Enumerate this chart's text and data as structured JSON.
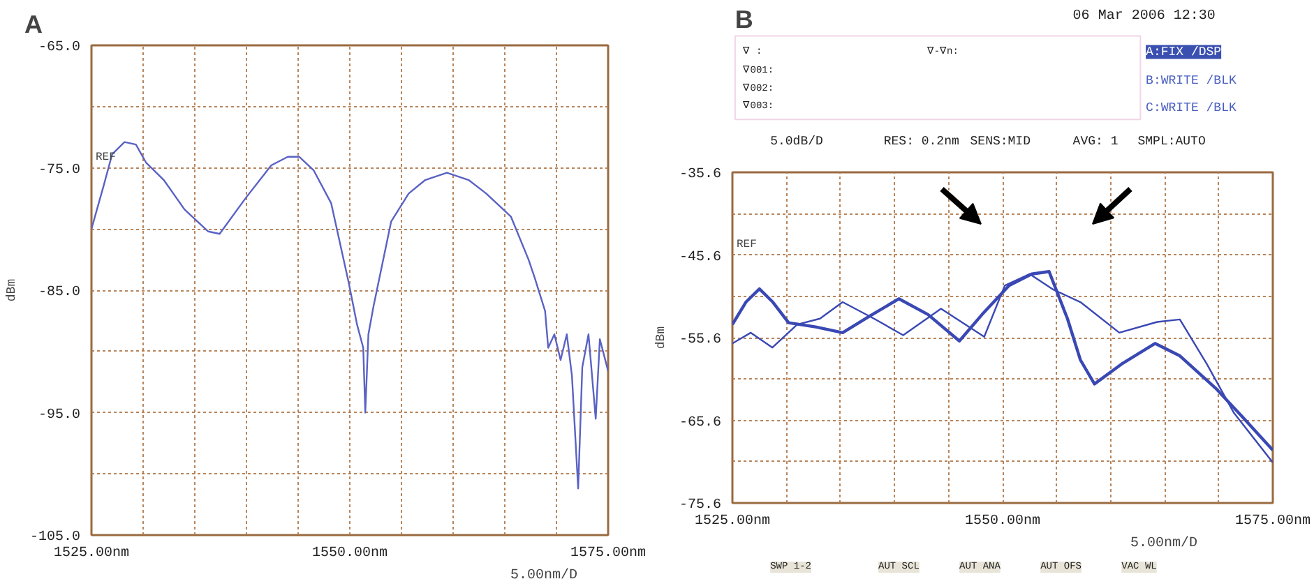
{
  "chart_data": [
    {
      "type": "line",
      "title": "A",
      "ylabel": "dBm",
      "xlim": [
        1525,
        1575
      ],
      "ylim": [
        -105,
        -65
      ],
      "xticks": [
        {
          "value": 1525,
          "label": "1525.00nm"
        },
        {
          "value": 1530,
          "label": null
        },
        {
          "value": 1535,
          "label": null
        },
        {
          "value": 1540,
          "label": null
        },
        {
          "value": 1545,
          "label": null
        },
        {
          "value": 1550,
          "label": "1550.00nm"
        },
        {
          "value": 1555,
          "label": null
        },
        {
          "value": 1560,
          "label": null
        },
        {
          "value": 1565,
          "label": null
        },
        {
          "value": 1570,
          "label": null
        },
        {
          "value": 1575,
          "label": "1575.00nm"
        }
      ],
      "yticks": [
        {
          "value": -105,
          "label": "-105.0"
        },
        {
          "value": -100,
          "label": null
        },
        {
          "value": -95,
          "label": "-95.0"
        },
        {
          "value": -90,
          "label": null
        },
        {
          "value": -85,
          "label": "-85.0"
        },
        {
          "value": -80,
          "label": null
        },
        {
          "value": -75,
          "label": "-75.0"
        },
        {
          "value": -70,
          "label": null
        },
        {
          "value": -65,
          "label": "-65.0"
        }
      ],
      "grid": true,
      "annotations": [
        "REF",
        "5.00nm/D"
      ],
      "series": [
        {
          "color": "#5a62c4",
          "x": [
            1525,
            1526.2,
            1527.0,
            1528.2,
            1529.3,
            1530.3,
            1532.0,
            1534.0,
            1536.3,
            1537.4,
            1539.9,
            1542.4,
            1544.0,
            1545.1,
            1546.5,
            1548.2,
            1549.9,
            1550.7,
            1551.3,
            1551.5,
            1551.8,
            1552.3,
            1554.0,
            1555.7,
            1557.3,
            1559.4,
            1561.5,
            1563.2,
            1565.6,
            1567.3,
            1567.9,
            1568.9,
            1569.2,
            1569.8,
            1570.4,
            1571.0,
            1571.5,
            1572.1,
            1572.5,
            1573.1,
            1573.8,
            1574.2,
            1575
          ],
          "values": [
            -80.0,
            -76.4,
            -73.9,
            -72.9,
            -73.1,
            -74.6,
            -76.0,
            -78.4,
            -80.2,
            -80.4,
            -77.5,
            -74.8,
            -74.1,
            -74.1,
            -75.2,
            -77.9,
            -84.4,
            -87.8,
            -89.7,
            -95.0,
            -88.6,
            -86.3,
            -79.4,
            -77.1,
            -76.0,
            -75.4,
            -76.0,
            -77.1,
            -79.0,
            -82.5,
            -84.0,
            -86.7,
            -89.7,
            -88.6,
            -90.7,
            -88.6,
            -92.0,
            -101.2,
            -91.3,
            -88.6,
            -95.5,
            -89.0,
            -91.6
          ]
        }
      ]
    },
    {
      "type": "line",
      "title": "B",
      "ylabel": "dBm",
      "xlim": [
        1525,
        1575
      ],
      "ylim": [
        -75.6,
        -35.6
      ],
      "xticks": [
        {
          "value": 1525,
          "label": "1525.00nm"
        },
        {
          "value": 1530,
          "label": null
        },
        {
          "value": 1535,
          "label": null
        },
        {
          "value": 1540,
          "label": null
        },
        {
          "value": 1545,
          "label": null
        },
        {
          "value": 1550,
          "label": "1550.00nm"
        },
        {
          "value": 1555,
          "label": null
        },
        {
          "value": 1560,
          "label": null
        },
        {
          "value": 1565,
          "label": null
        },
        {
          "value": 1570,
          "label": null
        },
        {
          "value": 1575,
          "label": "1575.00nm"
        }
      ],
      "yticks": [
        {
          "value": -75.6,
          "label": "-75.6"
        },
        {
          "value": -70.6,
          "label": null
        },
        {
          "value": -65.6,
          "label": "-65.6"
        },
        {
          "value": -60.6,
          "label": null
        },
        {
          "value": -55.6,
          "label": "-55.6"
        },
        {
          "value": -50.6,
          "label": null
        },
        {
          "value": -45.6,
          "label": "-45.6"
        },
        {
          "value": -40.6,
          "label": null
        },
        {
          "value": -35.6,
          "label": "-35.6"
        }
      ],
      "grid": true,
      "annotations": [
        "REF",
        "06 Mar 2006 12:30",
        "∇ :",
        "∇-∇n:",
        "∇001:",
        "∇002:",
        "∇003:",
        "A:FIX /DSP",
        "B:WRITE /BLK",
        "C:WRITE /BLK",
        "5.0dB/D",
        "RES: 0.2nm",
        "SENS:MID",
        "AVG: 1",
        "SMPL:AUTO",
        "5.00nm/D",
        "SWP 1-2",
        "AUT SCL",
        "AUT ANA",
        "AUT OFS",
        "VAC WL"
      ],
      "series": [
        {
          "color": "#3a48b4",
          "x": [
            1525,
            1526.25,
            1527.5,
            1528.74,
            1530.2,
            1532.7,
            1535.2,
            1537.7,
            1540.4,
            1543.1,
            1546.0,
            1548.1,
            1550.6,
            1552.7,
            1554.3,
            1556.0,
            1557.2,
            1558.5,
            1561.0,
            1564.1,
            1566.4,
            1569.7,
            1572.2,
            1575
          ],
          "values": [
            -54.0,
            -51.3,
            -49.7,
            -51.3,
            -53.8,
            -54.3,
            -55.0,
            -53.0,
            -50.9,
            -52.8,
            -56.0,
            -52.8,
            -49.3,
            -47.9,
            -47.6,
            -53.3,
            -58.3,
            -61.2,
            -58.8,
            -56.3,
            -57.8,
            -61.7,
            -65.2,
            -69.2
          ]
        },
        {
          "color": "#3a48b4",
          "x": [
            1525,
            1526.7,
            1528.7,
            1531.0,
            1533.1,
            1535.2,
            1538.1,
            1540.8,
            1544.3,
            1548.3,
            1550.2,
            1552.5,
            1554.7,
            1557.2,
            1560.8,
            1564.3,
            1566.4,
            1568.9,
            1571.4,
            1575
          ],
          "values": [
            -56.3,
            -55.0,
            -56.8,
            -54.0,
            -53.3,
            -51.3,
            -53.3,
            -55.3,
            -52.1,
            -55.5,
            -49.3,
            -47.9,
            -49.8,
            -51.3,
            -55.0,
            -53.7,
            -53.4,
            -58.8,
            -64.7,
            -70.7
          ]
        }
      ]
    }
  ]
}
